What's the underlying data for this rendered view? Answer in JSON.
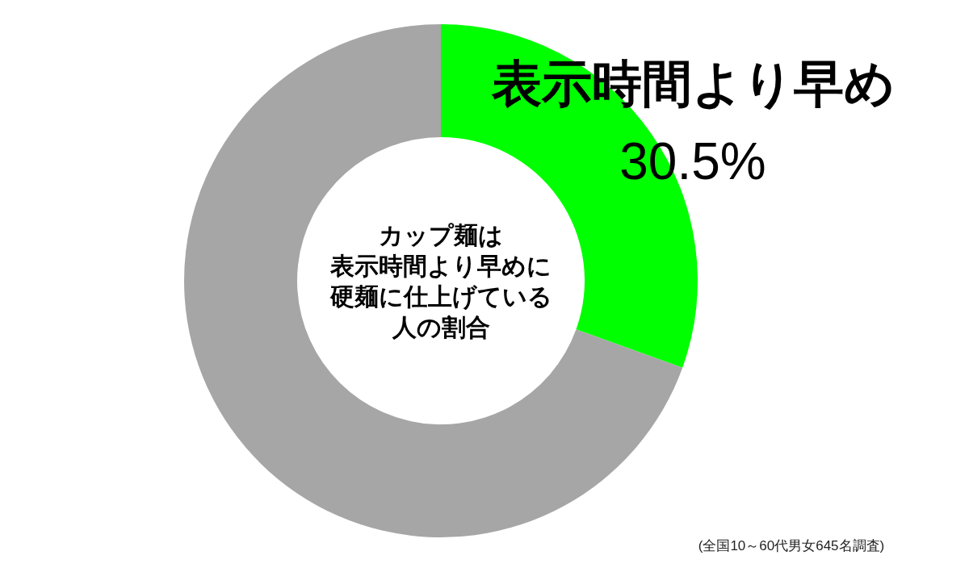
{
  "chart_data": {
    "type": "donut",
    "categories": [
      "表示時間より早め",
      null
    ],
    "values": [
      30.5,
      69.5
    ],
    "colors": [
      "#00ff00",
      "#a6a6a6"
    ],
    "value_labels": [
      "30.5%",
      null
    ],
    "annotations": [
      "カップ麺は",
      "表示時間より早めに",
      "硬麺に仕上げている",
      "人の割合",
      "(全国10～60代男女645名調査)"
    ]
  }
}
